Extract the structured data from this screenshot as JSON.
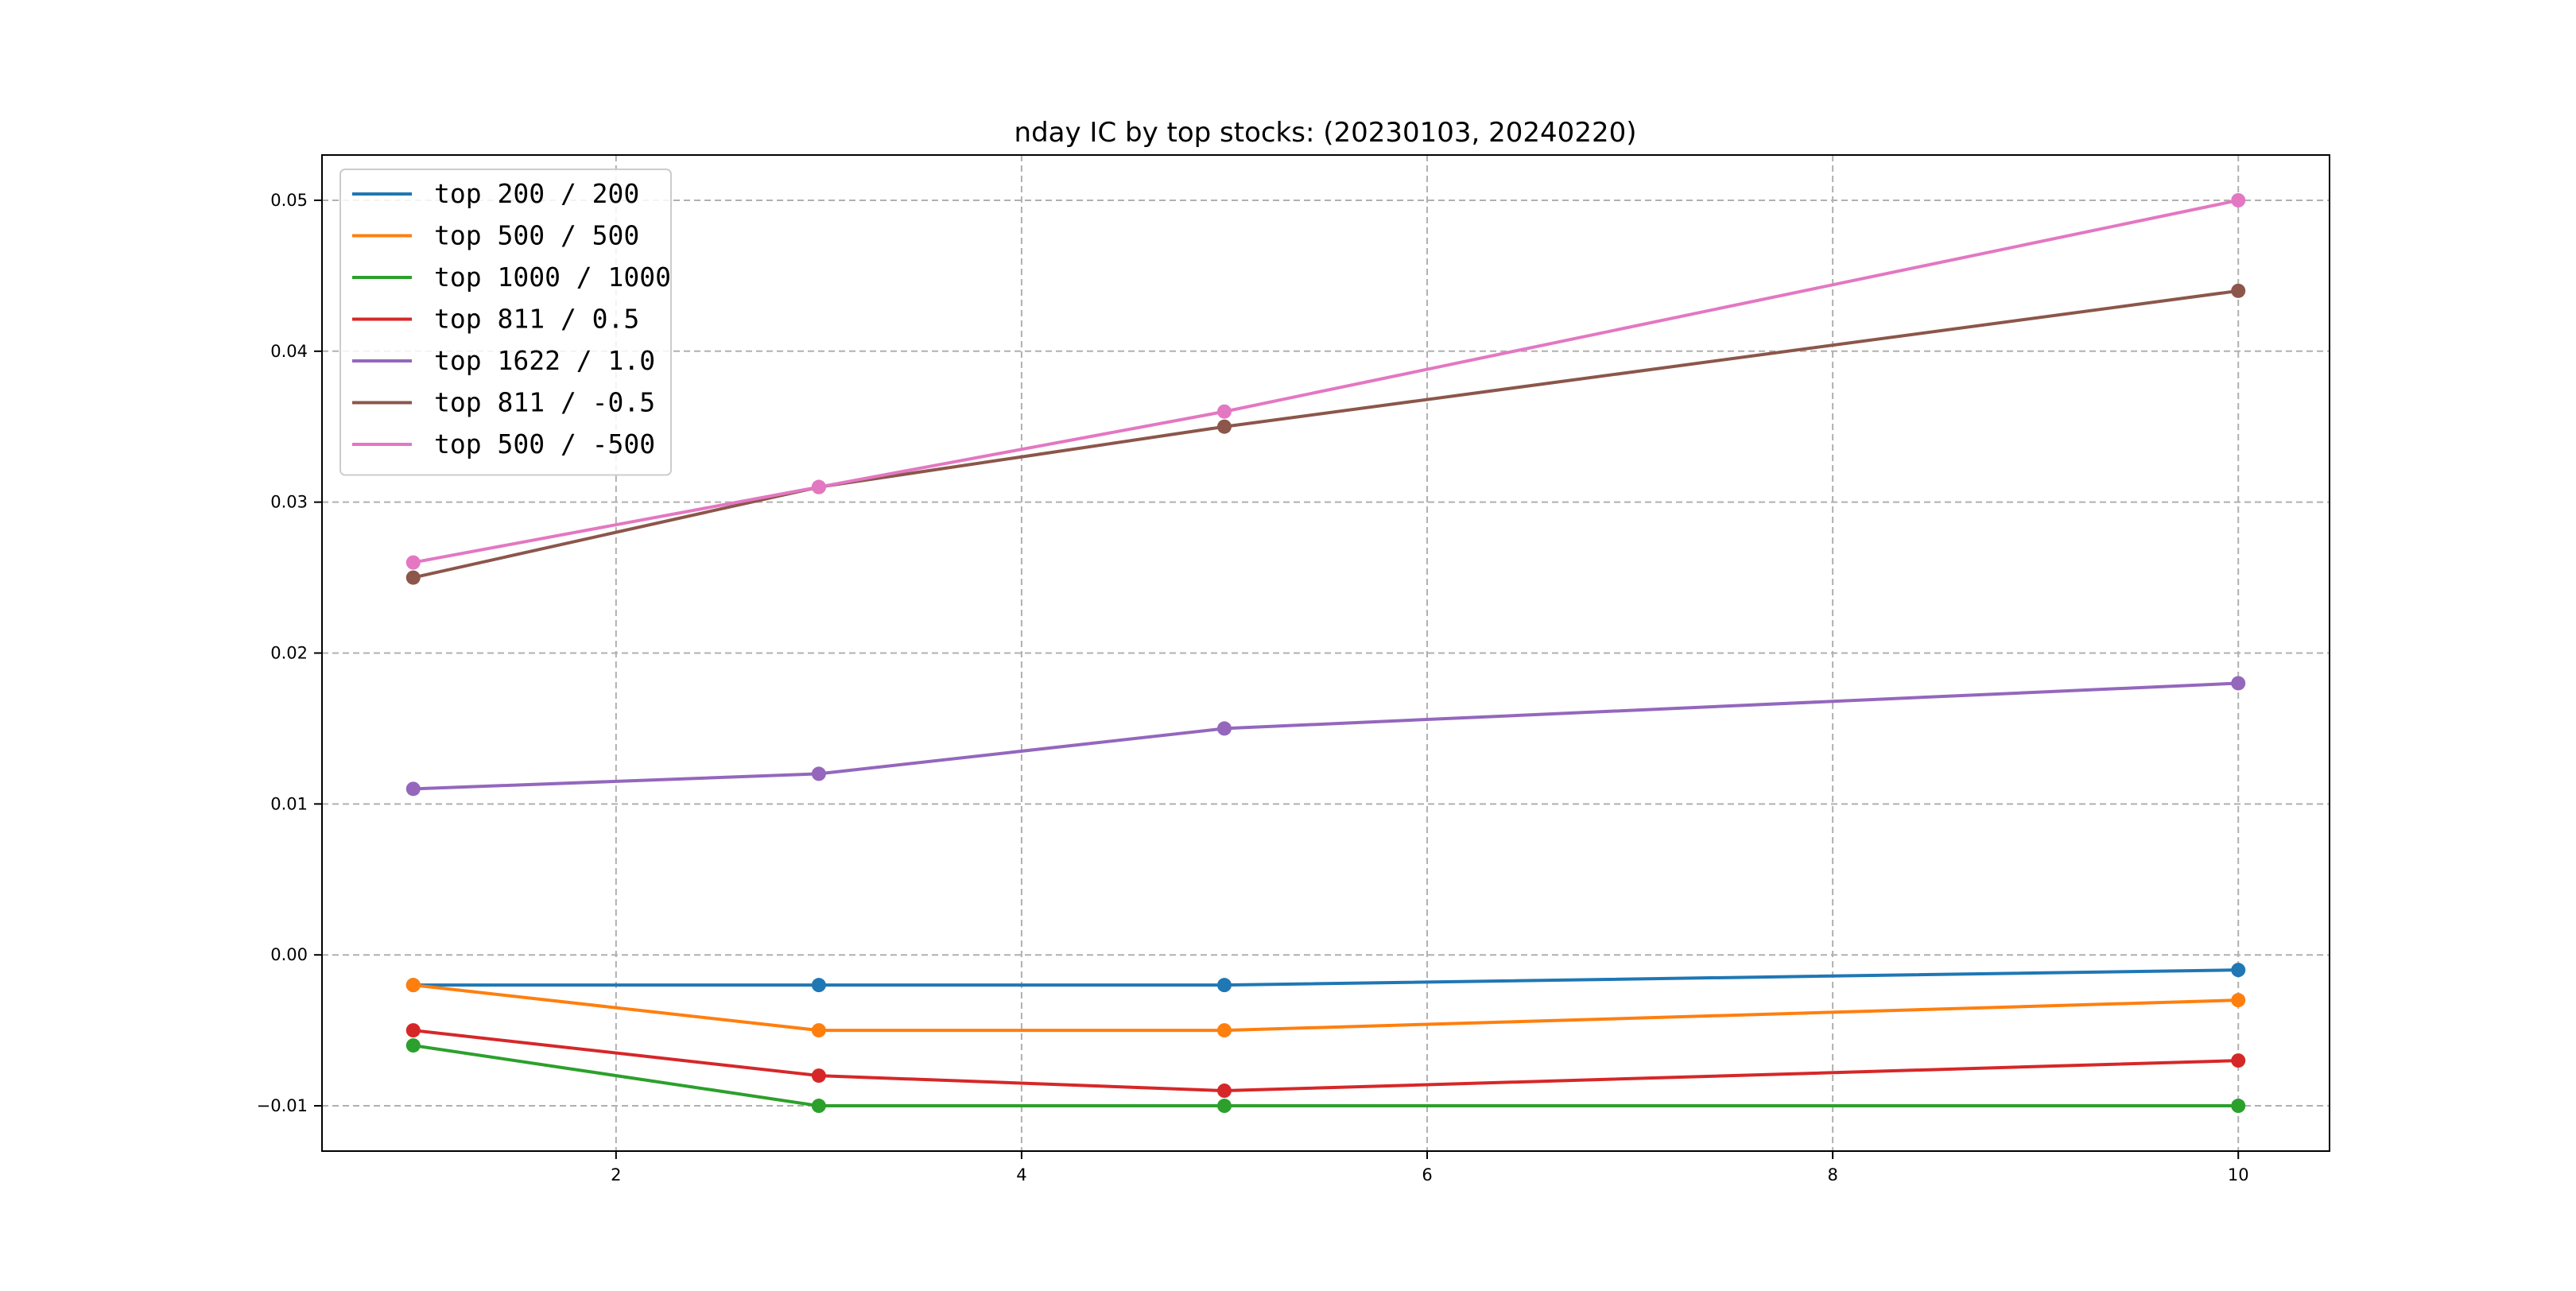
{
  "chart_data": {
    "type": "line",
    "title": "nday IC by top stocks: (20230103, 20240220)",
    "xlabel": "",
    "ylabel": "",
    "xlim": [
      0.55,
      10.45
    ],
    "ylim": [
      -0.013,
      0.053
    ],
    "x_ticks": [
      2,
      4,
      6,
      8,
      10
    ],
    "x_tick_labels": [
      "2",
      "4",
      "6",
      "8",
      "10"
    ],
    "y_ticks": [
      -0.01,
      0.0,
      0.01,
      0.02,
      0.03,
      0.04,
      0.05
    ],
    "y_tick_labels": [
      "−0.01",
      "0.00",
      "0.01",
      "0.02",
      "0.03",
      "0.04",
      "0.05"
    ],
    "grid": true,
    "legend_position": "upper-left",
    "x": [
      1,
      3,
      5,
      10
    ],
    "series": [
      {
        "name": "top 200 / 200",
        "color": "#1f77b4",
        "values": [
          -0.002,
          -0.002,
          -0.002,
          -0.001
        ]
      },
      {
        "name": "top 500 / 500",
        "color": "#ff7f0e",
        "values": [
          -0.002,
          -0.005,
          -0.005,
          -0.003
        ]
      },
      {
        "name": "top 1000 / 1000",
        "color": "#2ca02c",
        "values": [
          -0.006,
          -0.01,
          -0.01,
          -0.01
        ]
      },
      {
        "name": "top 811 / 0.5",
        "color": "#d62728",
        "values": [
          -0.005,
          -0.008,
          -0.009,
          -0.007
        ]
      },
      {
        "name": "top 1622 / 1.0",
        "color": "#9467bd",
        "values": [
          0.011,
          0.012,
          0.015,
          0.018
        ]
      },
      {
        "name": "top 811 / -0.5",
        "color": "#8c564b",
        "values": [
          0.025,
          0.031,
          0.035,
          0.044
        ]
      },
      {
        "name": "top 500 / -500",
        "color": "#e377c2",
        "values": [
          0.026,
          0.031,
          0.036,
          0.05
        ]
      }
    ]
  }
}
